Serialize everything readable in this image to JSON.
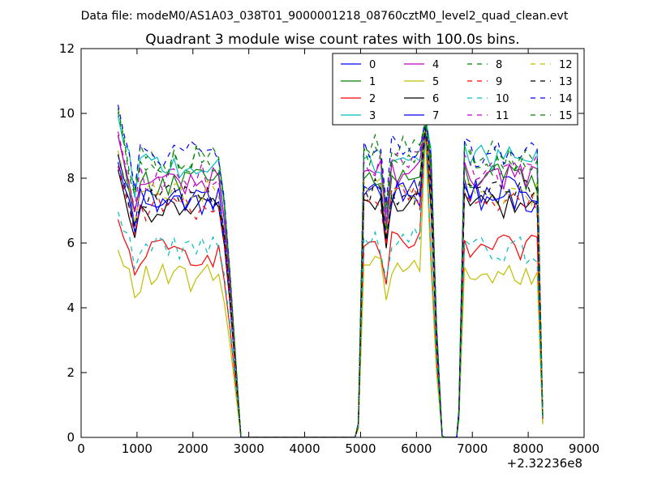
{
  "chart_data": {
    "type": "line",
    "suptitle": "Data file: modeM0/AS1A03_038T01_9000001218_08760cztM0_level2_quad_clean.evt",
    "title": "Quadrant 3 module wise count rates with 100.0s bins.",
    "xlabel": "",
    "ylabel": "",
    "x_offset_label": "+2.32236e8",
    "xlim": [
      0,
      9000
    ],
    "ylim": [
      0,
      12
    ],
    "xticks": [
      0,
      1000,
      2000,
      3000,
      4000,
      5000,
      6000,
      7000,
      8000,
      9000
    ],
    "yticks": [
      0,
      2,
      4,
      6,
      8,
      10,
      12
    ],
    "xtick_labels": [
      "0",
      "1000",
      "2000",
      "3000",
      "4000",
      "5000",
      "6000",
      "7000",
      "8000",
      "9000"
    ],
    "ytick_labels": [
      "0",
      "2",
      "4",
      "6",
      "8",
      "10",
      "12"
    ],
    "legend_position": "upper-right",
    "gap_level": 0,
    "segments": [
      {
        "start": 660,
        "step": 100,
        "n": 21
      },
      {
        "start": 4960,
        "step": 100,
        "n": 13
      },
      {
        "start": 6260,
        "step": 100,
        "n": 3
      },
      {
        "start": 6760,
        "step": 100,
        "n": 16
      }
    ],
    "series": [
      {
        "name": "0",
        "color": "#0000ff",
        "dash": "solid",
        "levels": [
          7.4,
          7.5,
          7.6
        ]
      },
      {
        "name": "1",
        "color": "#008000",
        "dash": "solid",
        "levels": [
          7.9,
          8.0,
          8.0
        ]
      },
      {
        "name": "2",
        "color": "#ff0000",
        "dash": "solid",
        "levels": [
          5.7,
          5.9,
          5.8
        ]
      },
      {
        "name": "3",
        "color": "#00bfbf",
        "dash": "solid",
        "levels": [
          8.4,
          8.6,
          8.6
        ]
      },
      {
        "name": "4",
        "color": "#bf00bf",
        "dash": "solid",
        "levels": [
          7.9,
          8.2,
          8.1
        ]
      },
      {
        "name": "5",
        "color": "#bfbf00",
        "dash": "solid",
        "levels": [
          4.9,
          5.3,
          5.0
        ]
      },
      {
        "name": "6",
        "color": "#000000",
        "dash": "solid",
        "levels": [
          7.0,
          7.3,
          7.2
        ]
      },
      {
        "name": "7",
        "color": "#0000ff",
        "dash": "solid",
        "levels": [
          7.2,
          7.7,
          7.4
        ]
      },
      {
        "name": "8",
        "color": "#008000",
        "dash": "dashed",
        "levels": [
          8.6,
          8.9,
          8.7
        ]
      },
      {
        "name": "9",
        "color": "#ff0000",
        "dash": "dashed",
        "levels": [
          7.1,
          7.4,
          7.2
        ]
      },
      {
        "name": "10",
        "color": "#00bfbf",
        "dash": "dashed",
        "levels": [
          5.9,
          6.1,
          5.8
        ]
      },
      {
        "name": "11",
        "color": "#bf00bf",
        "dash": "dashed",
        "levels": [
          8.0,
          8.4,
          8.3
        ]
      },
      {
        "name": "12",
        "color": "#bfbf00",
        "dash": "dashed",
        "levels": [
          7.5,
          7.8,
          7.6
        ]
      },
      {
        "name": "13",
        "color": "#000000",
        "dash": "dashed",
        "levels": [
          7.4,
          7.6,
          7.5
        ]
      },
      {
        "name": "14",
        "color": "#0000ff",
        "dash": "dashed",
        "levels": [
          8.7,
          9.0,
          8.8
        ]
      },
      {
        "name": "15",
        "color": "#008000",
        "dash": "dashed",
        "levels": [
          8.5,
          8.8,
          8.5
        ]
      }
    ]
  }
}
